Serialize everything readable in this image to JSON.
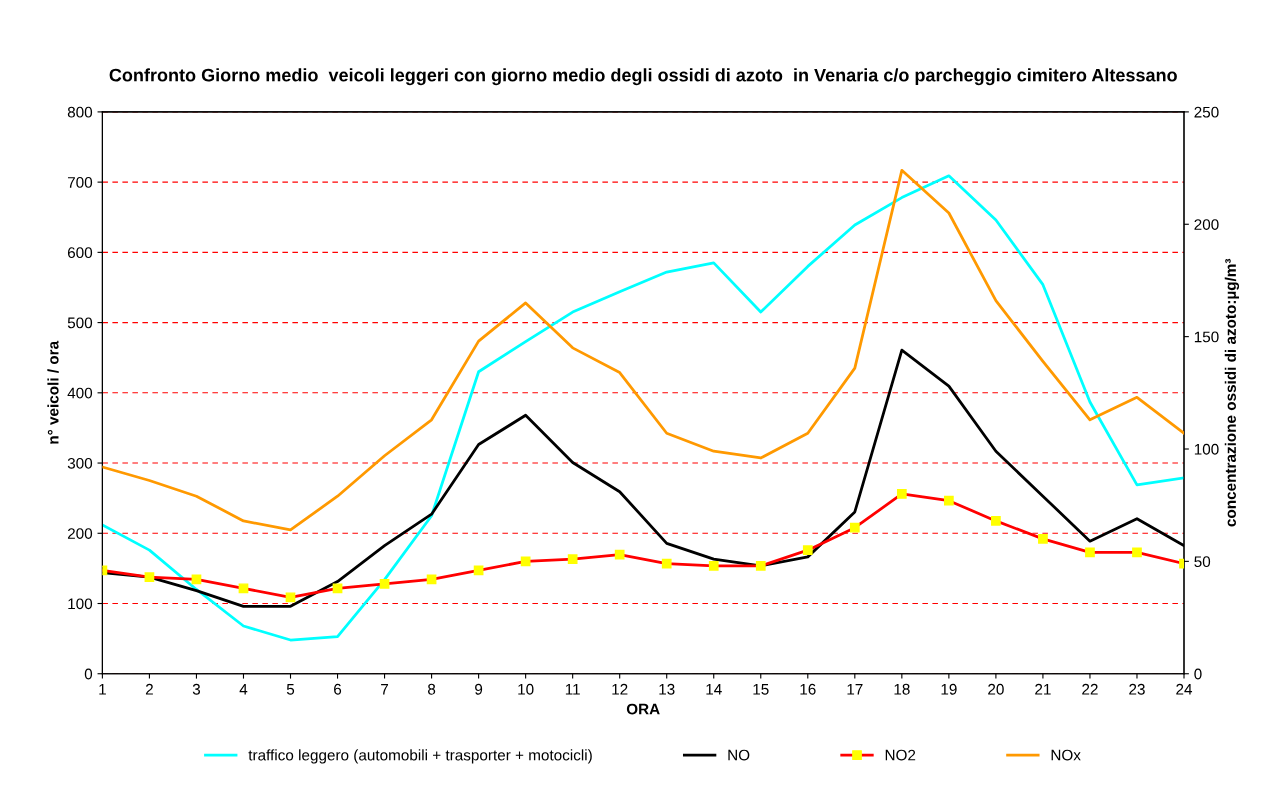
{
  "chart_data": {
    "type": "line",
    "title": "Confronto Giorno medio  veicoli leggeri con giorno medio degli ossidi di azoto  in Venaria c/o parcheggio cimitero Altessano",
    "xlabel": "ORA",
    "ylabel": "n° veicoli / ora",
    "y2label": "concentrazione ossidi di azoto:µg/m³",
    "categories": [
      "1",
      "2",
      "3",
      "4",
      "5",
      "6",
      "7",
      "8",
      "9",
      "10",
      "11",
      "12",
      "13",
      "14",
      "15",
      "16",
      "17",
      "18",
      "19",
      "20",
      "21",
      "22",
      "23",
      "24"
    ],
    "series": [
      {
        "name": "traffico leggero (automobili + trasporter + motocicli)",
        "color": "#00ffff",
        "values": [
          212,
          176,
          120,
          68,
          48,
          53,
          134,
          225,
          430,
          473,
          515,
          544,
          572,
          585,
          515,
          580,
          639,
          678,
          709,
          646,
          554,
          387,
          269,
          279
        ]
      },
      {
        "name": "NO",
        "color": "#000000",
        "axis": "y2",
        "values": [
          45,
          43,
          37,
          30,
          30,
          41,
          57,
          71,
          102,
          115,
          94,
          81,
          58,
          51,
          48,
          52,
          72,
          144,
          128,
          99,
          79,
          59,
          69,
          57
        ]
      },
      {
        "name": "NO2",
        "color": "#ff0000",
        "axis": "y2",
        "marker": "square",
        "values": [
          46,
          43,
          42,
          38,
          34,
          38,
          40,
          42,
          46,
          50,
          51,
          53,
          49,
          48,
          48,
          55,
          65,
          80,
          77,
          68,
          60,
          54,
          54,
          49
        ]
      },
      {
        "name": "NOx",
        "color": "#ff9900",
        "axis": "y2",
        "values": [
          92,
          86,
          79,
          68,
          64,
          79,
          97,
          113,
          148,
          165,
          145,
          134,
          107,
          99,
          96,
          107,
          136,
          224,
          205,
          166,
          139,
          113,
          123,
          107
        ]
      }
    ],
    "ylim": [
      0,
      800
    ],
    "yticks": [
      0,
      100,
      200,
      300,
      400,
      500,
      600,
      700,
      800
    ],
    "y2lim": [
      0,
      250
    ],
    "y2ticks": [
      0,
      50,
      100,
      150,
      200,
      250
    ],
    "grid": "y",
    "legend": "bottom",
    "line_style": "solid"
  }
}
